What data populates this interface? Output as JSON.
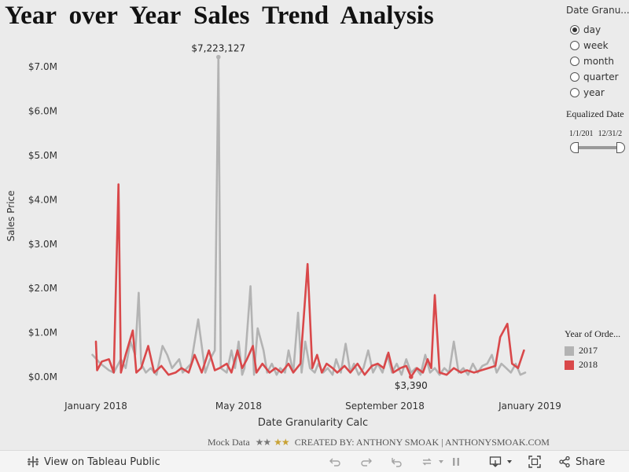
{
  "page": {
    "title": "Year over Year Sales Trend Analysis"
  },
  "date_granularity": {
    "title": "Date Granu...",
    "options": [
      "day",
      "week",
      "month",
      "quarter",
      "year"
    ],
    "selected": "day"
  },
  "equalized_date": {
    "title": "Equalized Date",
    "range_start": "1/1/201",
    "range_end": "12/31/2"
  },
  "legend": {
    "title": "Year of Orde...",
    "items": [
      {
        "label": "2017",
        "color": "#b3b3b3"
      },
      {
        "label": "2018",
        "color": "#d9484a"
      }
    ]
  },
  "credits": {
    "mock": "Mock Data",
    "created_by": "CREATED BY: ANTHONY SMOAK | ANTHONYSMOAK.COM"
  },
  "toolbar": {
    "view_label": "View on Tableau Public",
    "share_label": "Share"
  },
  "chart_data": {
    "type": "line",
    "ylabel": "Sales Price",
    "xlabel": "Date Granularity Calc",
    "ylim": [
      0,
      7500000
    ],
    "y_ticks": [
      0,
      1000000,
      2000000,
      3000000,
      4000000,
      5000000,
      6000000,
      7000000
    ],
    "y_tick_labels": [
      "$0.0M",
      "$1.0M",
      "$2.0M",
      "$3.0M",
      "$4.0M",
      "$5.0M",
      "$6.0M",
      "$7.0M"
    ],
    "x_ticks": [
      "2018-01-01",
      "2018-05-01",
      "2018-09-01",
      "2019-01-01"
    ],
    "x_tick_labels": [
      "January 2018",
      "May 2018",
      "September 2018",
      "January 2019"
    ],
    "annotations": [
      {
        "text": "$7,223,127",
        "x": "2018-04-14",
        "value": 7223127,
        "series": "2017"
      },
      {
        "text": "$3,390",
        "x": "2018-09-23",
        "value": 3390,
        "series": "2018"
      }
    ],
    "series": [
      {
        "name": "2017",
        "color": "#b3b3b3",
        "points": [
          [
            "2017-12-29",
            500000
          ],
          [
            "2018-01-05",
            300000
          ],
          [
            "2018-01-12",
            150000
          ],
          [
            "2018-01-16",
            100000
          ],
          [
            "2018-01-22",
            400000
          ],
          [
            "2018-01-26",
            200000
          ],
          [
            "2018-01-30",
            800000
          ],
          [
            "2018-02-03",
            500000
          ],
          [
            "2018-02-06",
            1900000
          ],
          [
            "2018-02-08",
            300000
          ],
          [
            "2018-02-12",
            100000
          ],
          [
            "2018-02-16",
            200000
          ],
          [
            "2018-02-21",
            50000
          ],
          [
            "2018-02-26",
            700000
          ],
          [
            "2018-03-02",
            500000
          ],
          [
            "2018-03-06",
            200000
          ],
          [
            "2018-03-12",
            400000
          ],
          [
            "2018-03-15",
            100000
          ],
          [
            "2018-03-22",
            300000
          ],
          [
            "2018-03-28",
            1300000
          ],
          [
            "2018-03-31",
            700000
          ],
          [
            "2018-04-03",
            100000
          ],
          [
            "2018-04-07",
            400000
          ],
          [
            "2018-04-11",
            600000
          ],
          [
            "2018-04-14",
            7223127
          ],
          [
            "2018-04-16",
            200000
          ],
          [
            "2018-04-21",
            100000
          ],
          [
            "2018-04-25",
            600000
          ],
          [
            "2018-04-28",
            200000
          ],
          [
            "2018-05-01",
            800000
          ],
          [
            "2018-05-04",
            50000
          ],
          [
            "2018-05-06",
            200000
          ],
          [
            "2018-05-11",
            2050000
          ],
          [
            "2018-05-14",
            50000
          ],
          [
            "2018-05-17",
            1100000
          ],
          [
            "2018-05-22",
            600000
          ],
          [
            "2018-05-25",
            100000
          ],
          [
            "2018-05-29",
            300000
          ],
          [
            "2018-06-02",
            50000
          ],
          [
            "2018-06-05",
            200000
          ],
          [
            "2018-06-09",
            100000
          ],
          [
            "2018-06-12",
            600000
          ],
          [
            "2018-06-16",
            100000
          ],
          [
            "2018-06-20",
            1450000
          ],
          [
            "2018-06-23",
            100000
          ],
          [
            "2018-06-26",
            800000
          ],
          [
            "2018-06-30",
            200000
          ],
          [
            "2018-07-04",
            100000
          ],
          [
            "2018-07-07",
            300000
          ],
          [
            "2018-07-11",
            100000
          ],
          [
            "2018-07-15",
            200000
          ],
          [
            "2018-07-19",
            50000
          ],
          [
            "2018-07-22",
            400000
          ],
          [
            "2018-07-26",
            100000
          ],
          [
            "2018-07-30",
            750000
          ],
          [
            "2018-08-03",
            100000
          ],
          [
            "2018-08-06",
            300000
          ],
          [
            "2018-08-10",
            50000
          ],
          [
            "2018-08-14",
            200000
          ],
          [
            "2018-08-18",
            600000
          ],
          [
            "2018-08-22",
            100000
          ],
          [
            "2018-08-26",
            300000
          ],
          [
            "2018-08-30",
            100000
          ],
          [
            "2018-09-03",
            500000
          ],
          [
            "2018-09-07",
            100000
          ],
          [
            "2018-09-11",
            300000
          ],
          [
            "2018-09-15",
            50000
          ],
          [
            "2018-09-19",
            400000
          ],
          [
            "2018-09-23",
            100000
          ],
          [
            "2018-09-27",
            200000
          ],
          [
            "2018-10-01",
            50000
          ],
          [
            "2018-10-05",
            500000
          ],
          [
            "2018-10-09",
            100000
          ],
          [
            "2018-10-13",
            200000
          ],
          [
            "2018-10-17",
            50000
          ],
          [
            "2018-10-21",
            200000
          ],
          [
            "2018-10-25",
            100000
          ],
          [
            "2018-10-29",
            800000
          ],
          [
            "2018-11-02",
            100000
          ],
          [
            "2018-11-06",
            200000
          ],
          [
            "2018-11-10",
            50000
          ],
          [
            "2018-11-14",
            300000
          ],
          [
            "2018-11-18",
            100000
          ],
          [
            "2018-11-22",
            250000
          ],
          [
            "2018-11-26",
            300000
          ],
          [
            "2018-11-30",
            500000
          ],
          [
            "2018-12-04",
            100000
          ],
          [
            "2018-12-08",
            300000
          ],
          [
            "2018-12-12",
            200000
          ],
          [
            "2018-12-16",
            100000
          ],
          [
            "2018-12-20",
            300000
          ],
          [
            "2018-12-24",
            50000
          ],
          [
            "2018-12-28",
            100000
          ]
        ]
      },
      {
        "name": "2018",
        "color": "#d9484a",
        "points": [
          [
            "2018-01-01",
            800000
          ],
          [
            "2018-01-02",
            150000
          ],
          [
            "2018-01-06",
            350000
          ],
          [
            "2018-01-12",
            400000
          ],
          [
            "2018-01-16",
            100000
          ],
          [
            "2018-01-20",
            4350000
          ],
          [
            "2018-01-22",
            100000
          ],
          [
            "2018-01-26",
            500000
          ],
          [
            "2018-02-01",
            1050000
          ],
          [
            "2018-02-04",
            100000
          ],
          [
            "2018-02-08",
            200000
          ],
          [
            "2018-02-14",
            700000
          ],
          [
            "2018-02-19",
            100000
          ],
          [
            "2018-02-25",
            250000
          ],
          [
            "2018-03-03",
            50000
          ],
          [
            "2018-03-09",
            100000
          ],
          [
            "2018-03-14",
            200000
          ],
          [
            "2018-03-20",
            100000
          ],
          [
            "2018-03-25",
            500000
          ],
          [
            "2018-03-31",
            100000
          ],
          [
            "2018-04-06",
            600000
          ],
          [
            "2018-04-11",
            150000
          ],
          [
            "2018-04-15",
            200000
          ],
          [
            "2018-04-21",
            300000
          ],
          [
            "2018-04-25",
            100000
          ],
          [
            "2018-04-30",
            600000
          ],
          [
            "2018-05-04",
            200000
          ],
          [
            "2018-05-08",
            400000
          ],
          [
            "2018-05-13",
            700000
          ],
          [
            "2018-05-16",
            100000
          ],
          [
            "2018-05-21",
            300000
          ],
          [
            "2018-05-27",
            100000
          ],
          [
            "2018-06-01",
            200000
          ],
          [
            "2018-06-06",
            100000
          ],
          [
            "2018-06-12",
            300000
          ],
          [
            "2018-06-16",
            100000
          ],
          [
            "2018-06-22",
            300000
          ],
          [
            "2018-06-28",
            2550000
          ],
          [
            "2018-07-02",
            200000
          ],
          [
            "2018-07-06",
            500000
          ],
          [
            "2018-07-10",
            100000
          ],
          [
            "2018-07-14",
            300000
          ],
          [
            "2018-07-19",
            200000
          ],
          [
            "2018-07-23",
            100000
          ],
          [
            "2018-07-29",
            250000
          ],
          [
            "2018-08-03",
            100000
          ],
          [
            "2018-08-09",
            300000
          ],
          [
            "2018-08-15",
            50000
          ],
          [
            "2018-08-21",
            250000
          ],
          [
            "2018-08-26",
            300000
          ],
          [
            "2018-08-31",
            200000
          ],
          [
            "2018-09-04",
            550000
          ],
          [
            "2018-09-08",
            100000
          ],
          [
            "2018-09-14",
            200000
          ],
          [
            "2018-09-19",
            250000
          ],
          [
            "2018-09-23",
            3390
          ],
          [
            "2018-09-28",
            200000
          ],
          [
            "2018-10-03",
            100000
          ],
          [
            "2018-10-07",
            400000
          ],
          [
            "2018-10-10",
            200000
          ],
          [
            "2018-10-13",
            1850000
          ],
          [
            "2018-10-17",
            100000
          ],
          [
            "2018-10-23",
            50000
          ],
          [
            "2018-10-29",
            200000
          ],
          [
            "2018-11-04",
            100000
          ],
          [
            "2018-11-09",
            150000
          ],
          [
            "2018-11-15",
            100000
          ],
          [
            "2018-11-21",
            150000
          ],
          [
            "2018-11-27",
            200000
          ],
          [
            "2018-12-03",
            250000
          ],
          [
            "2018-12-07",
            900000
          ],
          [
            "2018-12-13",
            1200000
          ],
          [
            "2018-12-17",
            300000
          ],
          [
            "2018-12-22",
            200000
          ],
          [
            "2018-12-27",
            600000
          ]
        ]
      }
    ]
  }
}
